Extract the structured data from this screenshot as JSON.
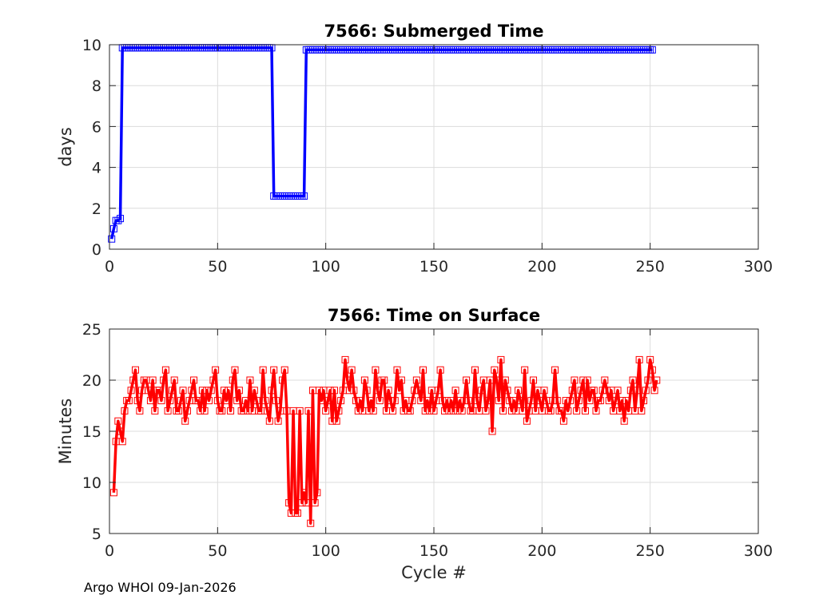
{
  "footer": "Argo WHOI 09-Jan-2026",
  "chart_data": [
    {
      "type": "line",
      "title": "7566: Submerged Time",
      "xlabel": "",
      "ylabel": "days",
      "xlim": [
        0,
        300
      ],
      "ylim": [
        0,
        10
      ],
      "xticks": [
        0,
        50,
        100,
        150,
        200,
        250,
        300
      ],
      "yticks": [
        0,
        2,
        4,
        6,
        8,
        10
      ],
      "grid": true,
      "color": "#0000ff",
      "marker": "square",
      "series": [
        {
          "segments": [
            {
              "from": 1,
              "to": 1,
              "value": 0.5
            },
            {
              "from": 2,
              "to": 2,
              "value": 1.0
            },
            {
              "from": 3,
              "to": 4,
              "value": 1.4
            },
            {
              "from": 5,
              "to": 5,
              "value": 1.5
            },
            {
              "from": 6,
              "to": 75,
              "value": 9.85
            },
            {
              "from": 76,
              "to": 90,
              "value": 2.6
            },
            {
              "from": 91,
              "to": 251,
              "value": 9.75
            }
          ]
        }
      ]
    },
    {
      "type": "line",
      "title": "7566: Time on Surface",
      "xlabel": "Cycle #",
      "ylabel": "Minutes",
      "xlim": [
        0,
        300
      ],
      "ylim": [
        5,
        25
      ],
      "xticks": [
        0,
        50,
        100,
        150,
        200,
        250,
        300
      ],
      "yticks": [
        5,
        10,
        15,
        20,
        25
      ],
      "grid": true,
      "color": "#ff0000",
      "marker": "square",
      "series": [
        {
          "x_start": 2,
          "values": [
            9,
            14,
            16,
            15,
            14,
            17,
            18,
            18,
            19,
            20,
            21,
            18,
            17,
            19,
            20,
            20,
            19,
            18,
            20,
            17,
            19,
            19,
            18,
            20,
            21,
            17,
            18,
            19,
            20,
            17,
            17,
            18,
            19,
            16,
            17,
            18,
            19,
            20,
            18,
            18,
            17,
            19,
            17,
            19,
            18,
            19,
            20,
            21,
            18,
            17,
            17,
            19,
            18,
            19,
            17,
            20,
            21,
            18,
            19,
            17,
            17,
            18,
            17,
            20,
            17,
            19,
            18,
            17,
            17,
            21,
            18,
            17,
            16,
            19,
            21,
            18,
            16,
            17,
            20,
            21,
            17,
            8,
            7,
            17,
            7,
            7,
            17,
            8,
            9,
            8,
            17,
            6,
            19,
            8,
            9,
            19,
            18,
            19,
            17,
            18,
            19,
            16,
            19,
            16,
            17,
            18,
            19,
            22,
            20,
            19,
            21,
            19,
            18,
            17,
            18,
            17,
            20,
            19,
            17,
            18,
            17,
            21,
            19,
            18,
            20,
            20,
            17,
            19,
            18,
            17,
            18,
            21,
            19,
            20,
            17,
            18,
            17,
            17,
            18,
            19,
            20,
            19,
            18,
            21,
            17,
            18,
            17,
            19,
            17,
            18,
            19,
            21,
            18,
            17,
            18,
            17,
            18,
            17,
            19,
            17,
            18,
            17,
            18,
            20,
            18,
            17,
            17,
            21,
            18,
            17,
            19,
            20,
            17,
            18,
            20,
            15,
            21,
            20,
            18,
            22,
            17,
            20,
            19,
            18,
            17,
            18,
            17,
            19,
            18,
            17,
            21,
            16,
            17,
            18,
            20,
            17,
            19,
            18,
            17,
            19,
            18,
            17,
            17,
            18,
            21,
            18,
            17,
            17,
            16,
            18,
            17,
            18,
            19,
            20,
            17,
            18,
            19,
            20,
            17,
            20,
            18,
            19,
            19,
            17,
            18,
            18,
            19,
            20,
            19,
            18,
            19,
            17,
            18,
            19,
            17,
            18,
            16,
            18,
            17,
            19,
            20,
            17,
            19,
            22,
            17,
            18,
            19,
            20,
            22,
            21,
            19,
            20
          ]
        }
      ]
    }
  ]
}
